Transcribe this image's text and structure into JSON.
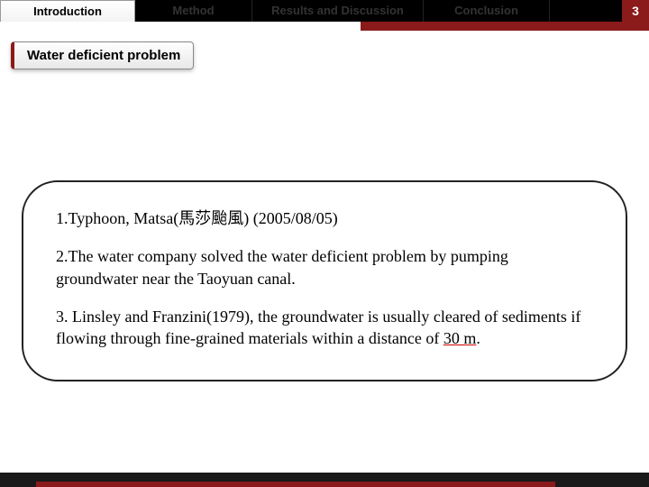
{
  "nav": {
    "tabs": [
      {
        "label": "Introduction",
        "active": true
      },
      {
        "label": "Method",
        "active": false
      },
      {
        "label": "Results and Discussion",
        "active": false
      },
      {
        "label": "Conclusion",
        "active": false
      }
    ],
    "page_number": "3"
  },
  "section": {
    "label": "Water deficient problem"
  },
  "content": {
    "point1_prefix": "1.Typhoon, Matsa(馬莎颱風) ",
    "point1_date": "(2005/08/05)",
    "point2": "2.The water company solved the water deficient problem by pumping groundwater near the Taoyuan canal.",
    "point3_prefix": "3. Linsley and Franzini(1979), the groundwater is usually cleared of sediments if flowing through fine-grained materials within a distance of ",
    "point3_highlight": "30 m",
    "point3_suffix": "."
  },
  "colors": {
    "accent_red": "#8b1a1a",
    "tab_dark": "#000000",
    "text": "#000000",
    "underline": "#c00"
  }
}
